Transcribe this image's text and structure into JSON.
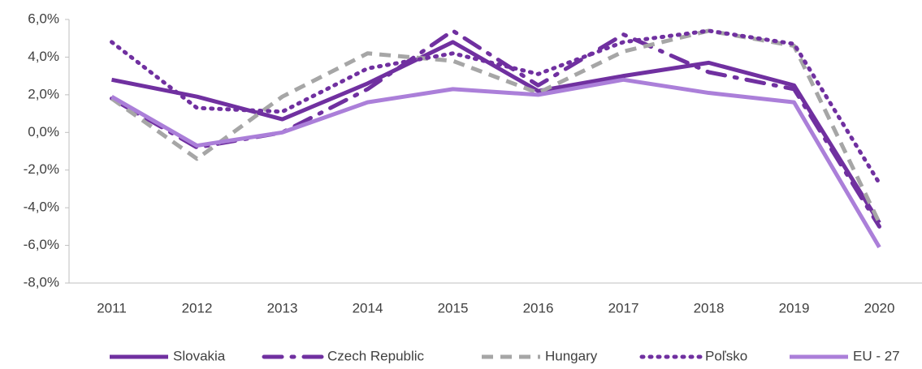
{
  "chart_data": {
    "type": "line",
    "categories": [
      "2011",
      "2012",
      "2013",
      "2014",
      "2015",
      "2016",
      "2017",
      "2018",
      "2019",
      "2020"
    ],
    "series": [
      {
        "name": "Slovakia",
        "color": "#7030a0",
        "style": "solid",
        "values": [
          2.8,
          1.9,
          0.7,
          2.6,
          4.8,
          2.2,
          3.0,
          3.7,
          2.5,
          -4.8
        ]
      },
      {
        "name": "Czech Republic",
        "color": "#7030a0",
        "style": "dashdot",
        "values": [
          1.8,
          -0.8,
          0.0,
          2.3,
          5.4,
          2.5,
          5.2,
          3.2,
          2.3,
          -5.0
        ]
      },
      {
        "name": "Hungary",
        "color": "#a6a6a6",
        "style": "dashed",
        "values": [
          1.8,
          -1.4,
          1.9,
          4.2,
          3.8,
          2.1,
          4.3,
          5.4,
          4.6,
          -4.8
        ]
      },
      {
        "name": "Poľsko",
        "color": "#7030a0",
        "style": "dotted",
        "values": [
          4.8,
          1.3,
          1.1,
          3.4,
          4.2,
          3.1,
          4.8,
          5.4,
          4.7,
          -2.7
        ]
      },
      {
        "name": "EU - 27",
        "color": "#ab7fd9",
        "style": "solid",
        "values": [
          1.9,
          -0.7,
          0.0,
          1.6,
          2.3,
          2.0,
          2.8,
          2.1,
          1.6,
          -6.1
        ]
      }
    ],
    "ylim": [
      -8,
      6
    ],
    "yticks": [
      {
        "value": -8,
        "label": "-8,0%"
      },
      {
        "value": -6,
        "label": "-6,0%"
      },
      {
        "value": -4,
        "label": "-4,0%"
      },
      {
        "value": -2,
        "label": "-2,0%"
      },
      {
        "value": 0,
        "label": "0,0%"
      },
      {
        "value": 2,
        "label": "2,0%"
      },
      {
        "value": 4,
        "label": "4,0%"
      },
      {
        "value": 6,
        "label": "6,0%"
      }
    ],
    "grid": false,
    "legend": "bottom"
  }
}
